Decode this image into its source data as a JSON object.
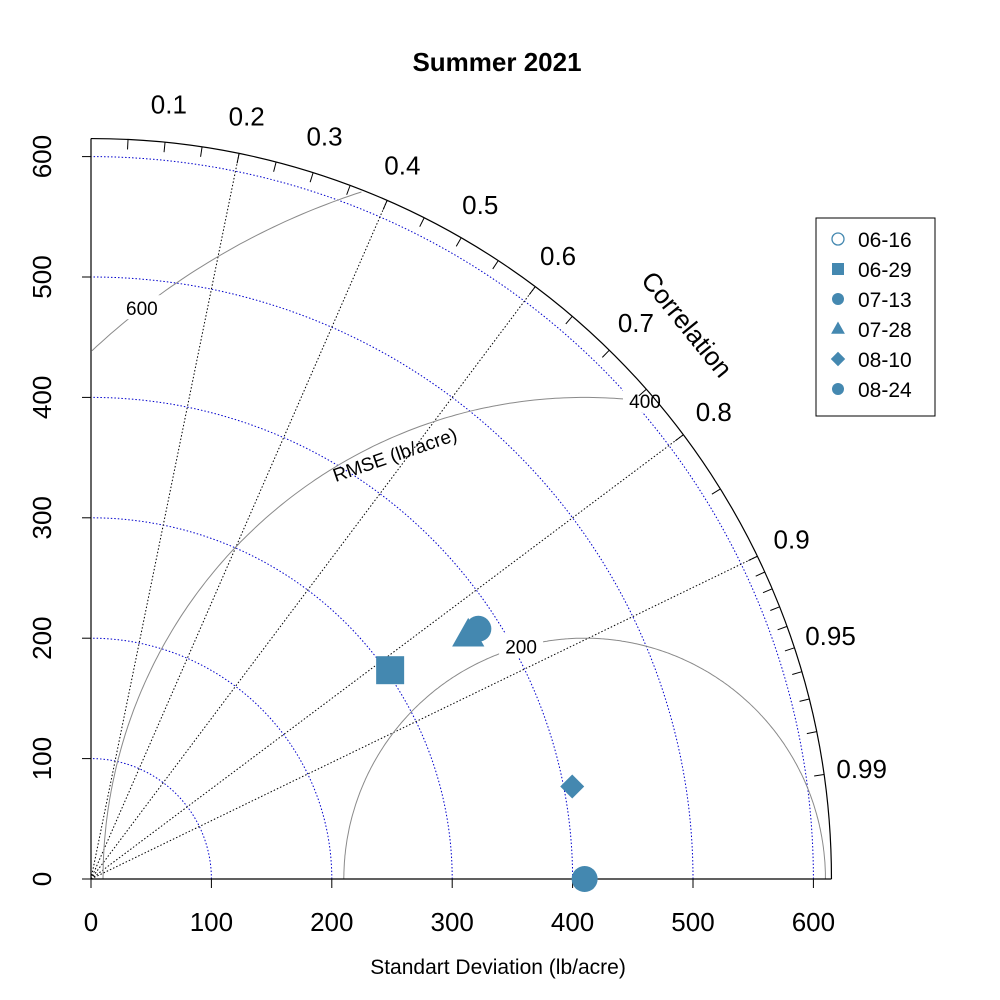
{
  "chart_data": {
    "type": "scatter",
    "subtype": "taylor-diagram",
    "title": "Summer 2021",
    "xlabel": "Standart Deviation (lb/acre)",
    "ylabel": "",
    "correlation_label": "Correlation",
    "rmse_label": "RMSE (lb/acre)",
    "sd_ticks": [
      "0",
      "100",
      "200",
      "300",
      "400",
      "500",
      "600"
    ],
    "sd_max": 615,
    "sd_ref_circles": [
      100,
      200,
      300,
      400,
      500,
      600
    ],
    "correlation_ticks": [
      "0.1",
      "0.2",
      "0.3",
      "0.4",
      "0.5",
      "0.6",
      "0.7",
      "0.8",
      "0.9",
      "0.95",
      "0.99"
    ],
    "correlation_lines": [
      0.2,
      0.4,
      0.6,
      0.8,
      0.9
    ],
    "rmse_reference_sd": 410,
    "rmse_contours": [
      200,
      400,
      600
    ],
    "rmse_contour_labels": [
      "200",
      "400",
      "600"
    ],
    "legend_position": "top-right",
    "marker_color": "#4488b0",
    "series": [
      {
        "name": "06-16",
        "marker": "open-circle",
        "sd": null,
        "correlation": null
      },
      {
        "name": "06-29",
        "marker": "square",
        "sd": 303,
        "correlation": 0.82
      },
      {
        "name": "07-13",
        "marker": "circle",
        "sd": 383,
        "correlation": 0.84
      },
      {
        "name": "07-28",
        "marker": "triangle",
        "sd": 373,
        "correlation": 0.84
      },
      {
        "name": "08-10",
        "marker": "diamond",
        "sd": 407,
        "correlation": 0.982
      },
      {
        "name": "08-24",
        "marker": "circle",
        "sd": 410,
        "correlation": 1.0
      }
    ]
  }
}
